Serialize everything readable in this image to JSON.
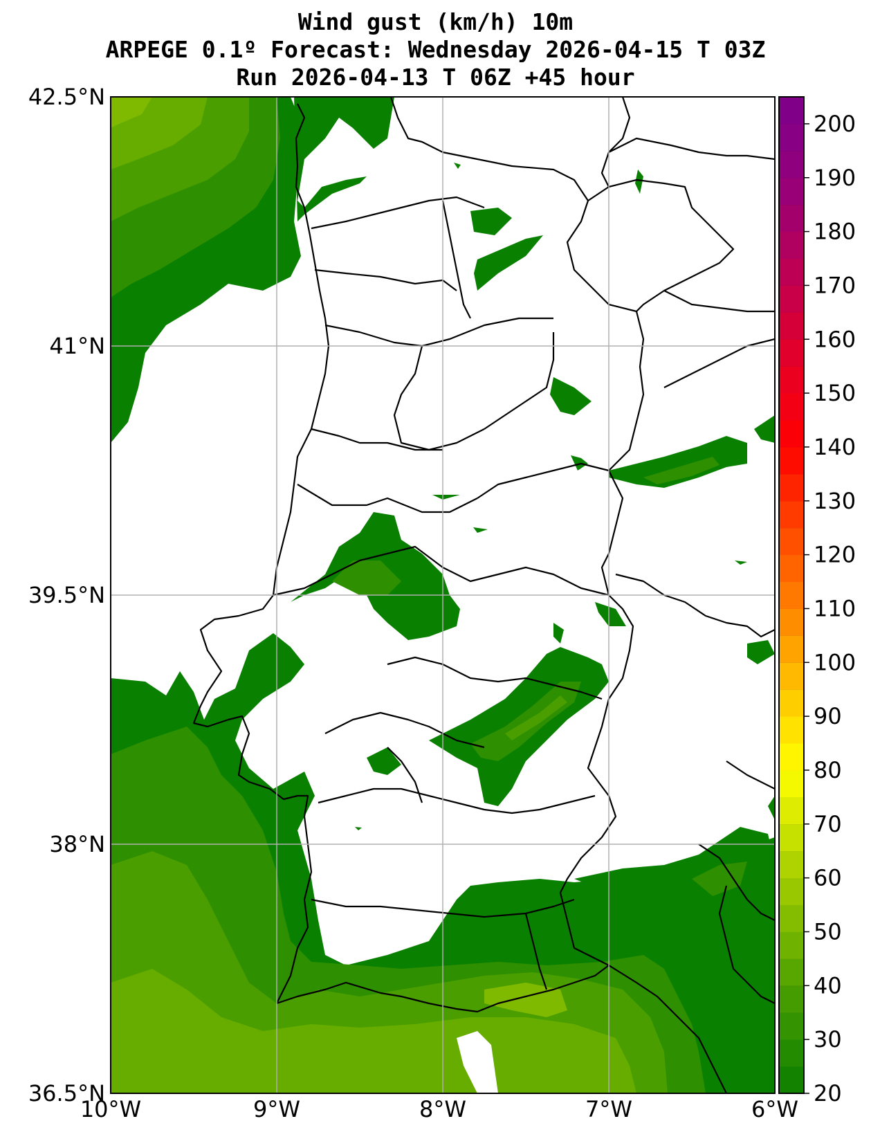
{
  "title": {
    "line1": "Wind gust (km/h) 10m",
    "line2": "ARPEGE 0.1º Forecast: Wednesday 2026-04-15 T 03Z",
    "line3": "Run 2026-04-13 T 06Z +45 hour"
  },
  "map": {
    "lon_range": [
      -10,
      -6
    ],
    "lat_range": [
      36.5,
      42.5
    ],
    "x_ticks": [
      {
        "value": -10,
        "label": "10°W"
      },
      {
        "value": -9,
        "label": "9°W"
      },
      {
        "value": -8,
        "label": "8°W"
      },
      {
        "value": -7,
        "label": "7°W"
      },
      {
        "value": -6,
        "label": "6°W"
      }
    ],
    "y_ticks": [
      {
        "value": 42.5,
        "label": "42.5°N"
      },
      {
        "value": 41,
        "label": "41°N"
      },
      {
        "value": 39.5,
        "label": "39.5°N"
      },
      {
        "value": 38,
        "label": "38°N"
      },
      {
        "value": 36.5,
        "label": "36.5°N"
      }
    ],
    "grid": true,
    "colors": {
      "green_dark": "#0a8000",
      "green_mid": "#2e8f00",
      "green_light": "#4a9e00",
      "green_pale": "#66ad00",
      "green_yellow": "#7fba00"
    }
  },
  "colorbar": {
    "min": 20,
    "max": 205,
    "step": 5,
    "labels": [
      "20",
      "30",
      "40",
      "50",
      "60",
      "70",
      "80",
      "90",
      "100",
      "110",
      "120",
      "130",
      "140",
      "150",
      "160",
      "170",
      "180",
      "190",
      "200"
    ],
    "label_values": [
      20,
      30,
      40,
      50,
      60,
      70,
      80,
      90,
      100,
      110,
      120,
      130,
      140,
      150,
      160,
      170,
      180,
      190,
      200
    ],
    "stops": [
      {
        "v": 20,
        "c": "#0a7d00"
      },
      {
        "v": 30,
        "c": "#2a8f00"
      },
      {
        "v": 40,
        "c": "#4da000"
      },
      {
        "v": 50,
        "c": "#7ab800"
      },
      {
        "v": 60,
        "c": "#a3cc00"
      },
      {
        "v": 70,
        "c": "#d2e600"
      },
      {
        "v": 80,
        "c": "#ffff00"
      },
      {
        "v": 90,
        "c": "#ffd800"
      },
      {
        "v": 100,
        "c": "#ffae00"
      },
      {
        "v": 110,
        "c": "#ff8200"
      },
      {
        "v": 120,
        "c": "#ff5a00"
      },
      {
        "v": 130,
        "c": "#ff3000"
      },
      {
        "v": 140,
        "c": "#ff0000"
      },
      {
        "v": 150,
        "c": "#f0001a"
      },
      {
        "v": 160,
        "c": "#dc0032"
      },
      {
        "v": 170,
        "c": "#c3004e"
      },
      {
        "v": 180,
        "c": "#aa0066"
      },
      {
        "v": 190,
        "c": "#93007d"
      },
      {
        "v": 205,
        "c": "#7d008a"
      }
    ]
  }
}
